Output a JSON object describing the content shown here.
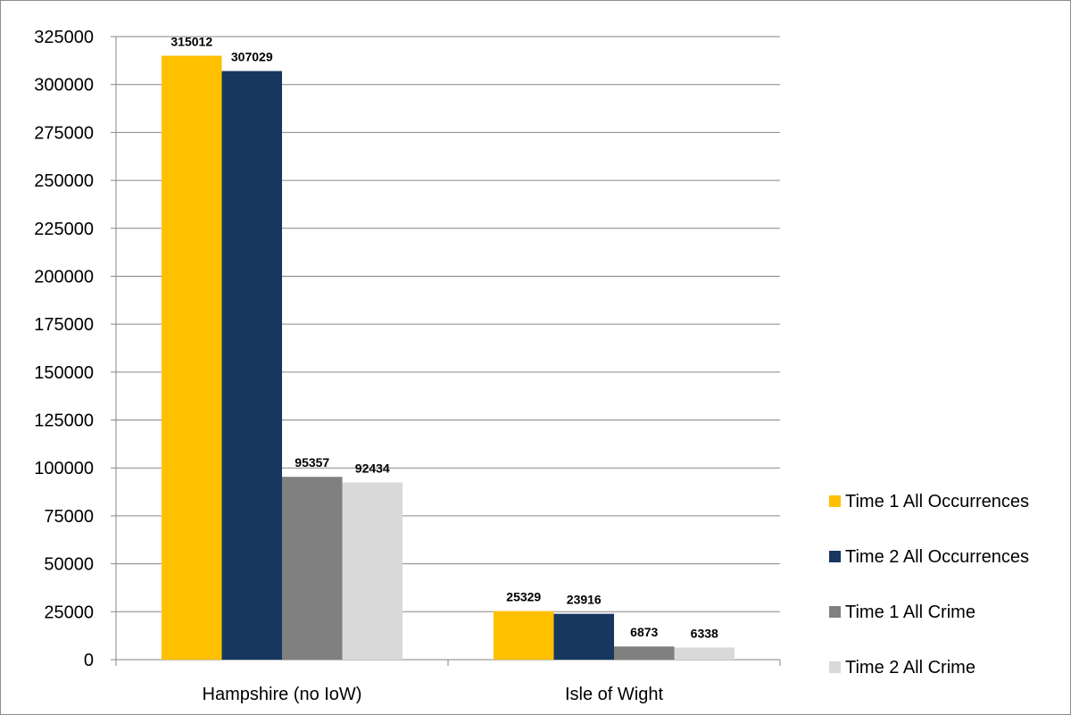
{
  "chart_data": {
    "type": "bar",
    "title": "",
    "xlabel": "",
    "ylabel": "",
    "ylim": [
      0,
      325000
    ],
    "y_ticks": [
      0,
      25000,
      50000,
      75000,
      100000,
      125000,
      150000,
      175000,
      200000,
      225000,
      250000,
      275000,
      300000,
      325000
    ],
    "categories": [
      "Hampshire (no IoW)",
      "Isle of Wight"
    ],
    "series": [
      {
        "name": "Time 1 All Occurrences",
        "color": "#FFC000",
        "values": [
          315012,
          25329
        ]
      },
      {
        "name": "Time 2 All Occurrences",
        "color": "#17375E",
        "values": [
          307029,
          23916
        ]
      },
      {
        "name": "Time 1 All Crime",
        "color": "#808080",
        "values": [
          95357,
          6873
        ]
      },
      {
        "name": "Time 2 All Crime",
        "color": "#D9D9D9",
        "values": [
          92434,
          6338
        ]
      }
    ],
    "grid": true,
    "legend_position": "right",
    "data_labels": true
  }
}
